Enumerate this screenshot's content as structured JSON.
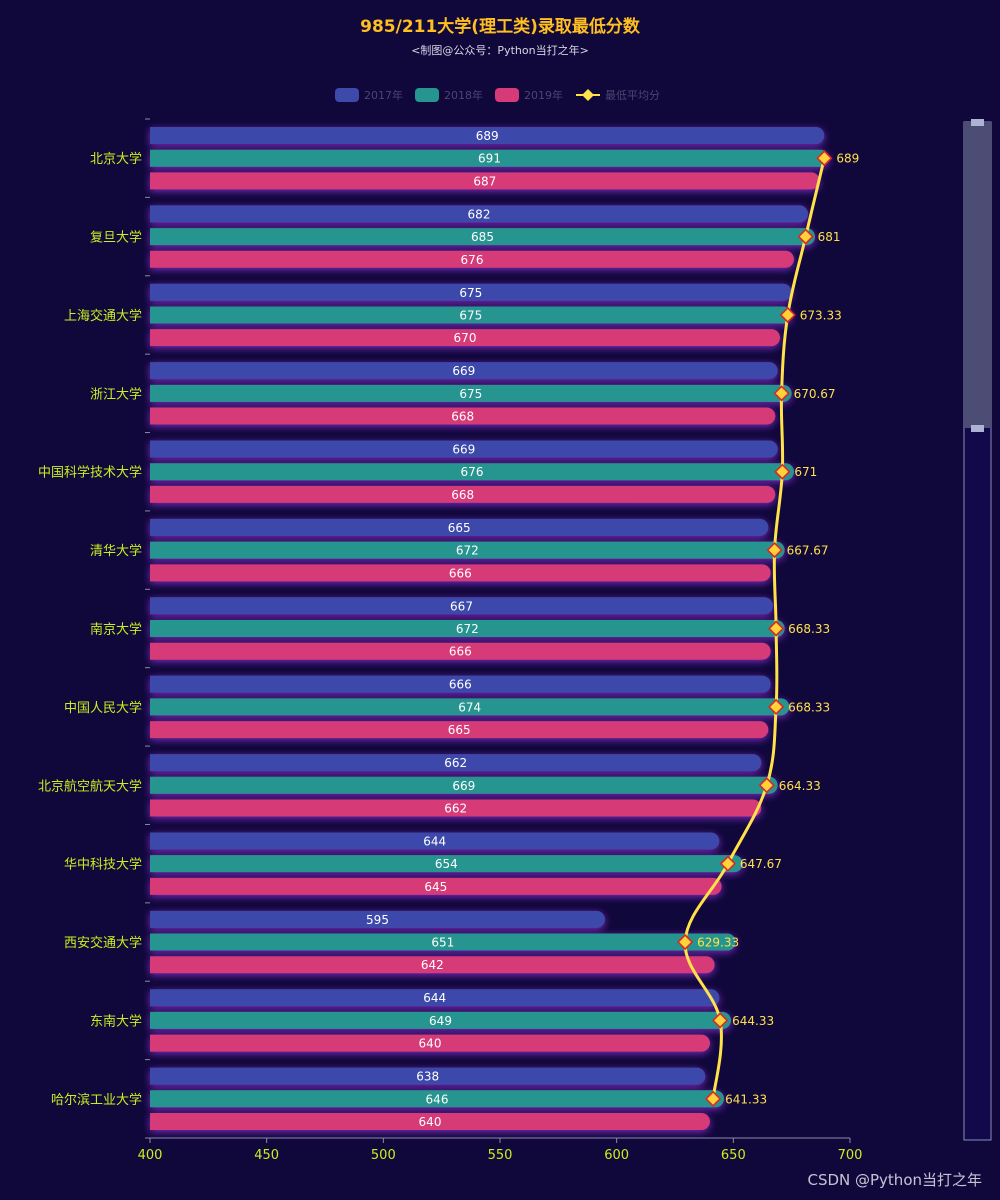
{
  "chart_data": {
    "type": "bar",
    "orientation": "horizontal",
    "title": "985/211大学(理工类)录取最低分数",
    "subtitle": "<制图@公众号：Python当打之年>",
    "categories": [
      "北京大学",
      "复旦大学",
      "上海交通大学",
      "浙江大学",
      "中国科学技术大学",
      "清华大学",
      "南京大学",
      "中国人民大学",
      "北京航空航天大学",
      "华中科技大学",
      "西安交通大学",
      "东南大学",
      "哈尔滨工业大学"
    ],
    "series": [
      {
        "name": "2017年",
        "type": "bar",
        "color": "#3d4aaa",
        "values": [
          689,
          682,
          675,
          669,
          669,
          665,
          667,
          666,
          662,
          644,
          595,
          644,
          638
        ]
      },
      {
        "name": "2018年",
        "type": "bar",
        "color": "#26958f",
        "values": [
          691,
          685,
          675,
          675,
          676,
          672,
          672,
          674,
          669,
          654,
          651,
          649,
          646
        ]
      },
      {
        "name": "2019年",
        "type": "bar",
        "color": "#d63a78",
        "values": [
          687,
          676,
          670,
          668,
          668,
          666,
          666,
          665,
          662,
          645,
          642,
          640,
          640
        ]
      },
      {
        "name": "最低平均分",
        "type": "line",
        "color": "#ffe24a",
        "values": [
          689,
          681,
          673.33,
          670.67,
          671,
          667.67,
          668.33,
          668.33,
          664.33,
          647.67,
          629.33,
          644.33,
          641.33
        ]
      }
    ],
    "xlim": [
      400,
      700
    ],
    "xticks": [
      "400",
      "450",
      "500",
      "550",
      "600",
      "650",
      "700"
    ],
    "legend_position": "top",
    "grid": false,
    "colors": {
      "background": "#10073b",
      "category_label": "#c8f01e",
      "tick_label": "#c8f01e",
      "title": "#ffbf1f"
    }
  },
  "watermark": "CSDN @Python当打之年"
}
